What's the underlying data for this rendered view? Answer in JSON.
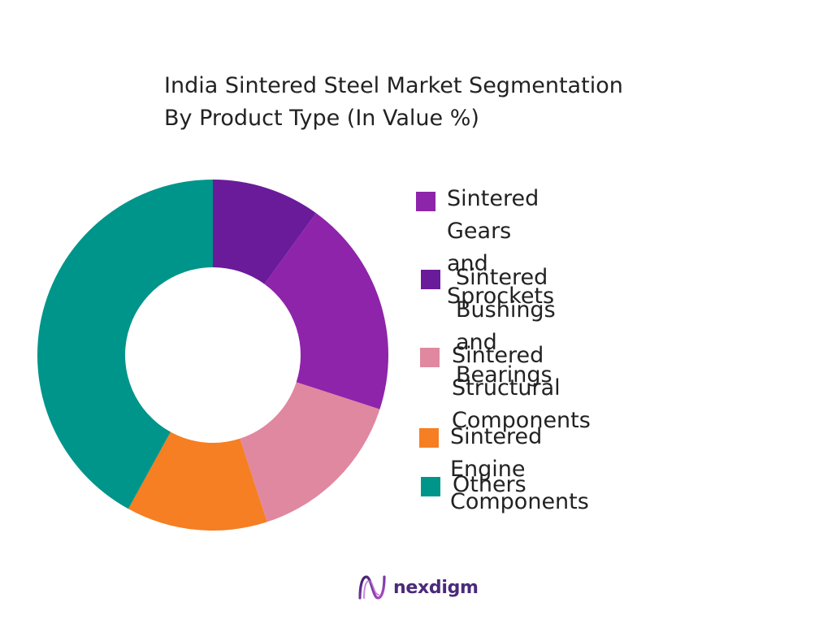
{
  "chart_data": {
    "type": "pie",
    "title": "India Sintered Steel Market Segmentation",
    "subtitle": "By Product Type (In Value %)",
    "donut": true,
    "legend_position": "right",
    "series": [
      {
        "name": "Sintered Bushings and Bearings",
        "value": 10,
        "color": "#6a1b9a"
      },
      {
        "name": "Sintered Gears and Sprockets",
        "value": 20,
        "color": "#8e24aa"
      },
      {
        "name": "Sintered Structural Components",
        "value": 15,
        "color": "#e088a0"
      },
      {
        "name": "Sintered Engine Components",
        "value": 13,
        "color": "#f57f22"
      },
      {
        "name": "Others",
        "value": 42,
        "color": "#00958a"
      }
    ],
    "legend": [
      {
        "label": "Sintered Gears and\nSprockets",
        "color": "#8e24aa"
      },
      {
        "label": "Sintered Bushings and\nBearings",
        "color": "#6a1b9a"
      },
      {
        "label": "Sintered Structural\nComponents",
        "color": "#e088a0"
      },
      {
        "label": "Sintered Engine Components",
        "color": "#f57f22"
      },
      {
        "label": "Others",
        "color": "#00958a"
      }
    ]
  },
  "brand": {
    "name": "nexdigm",
    "logo_icon": "nexdigm-logo-icon",
    "color": "#4a2a7a"
  }
}
